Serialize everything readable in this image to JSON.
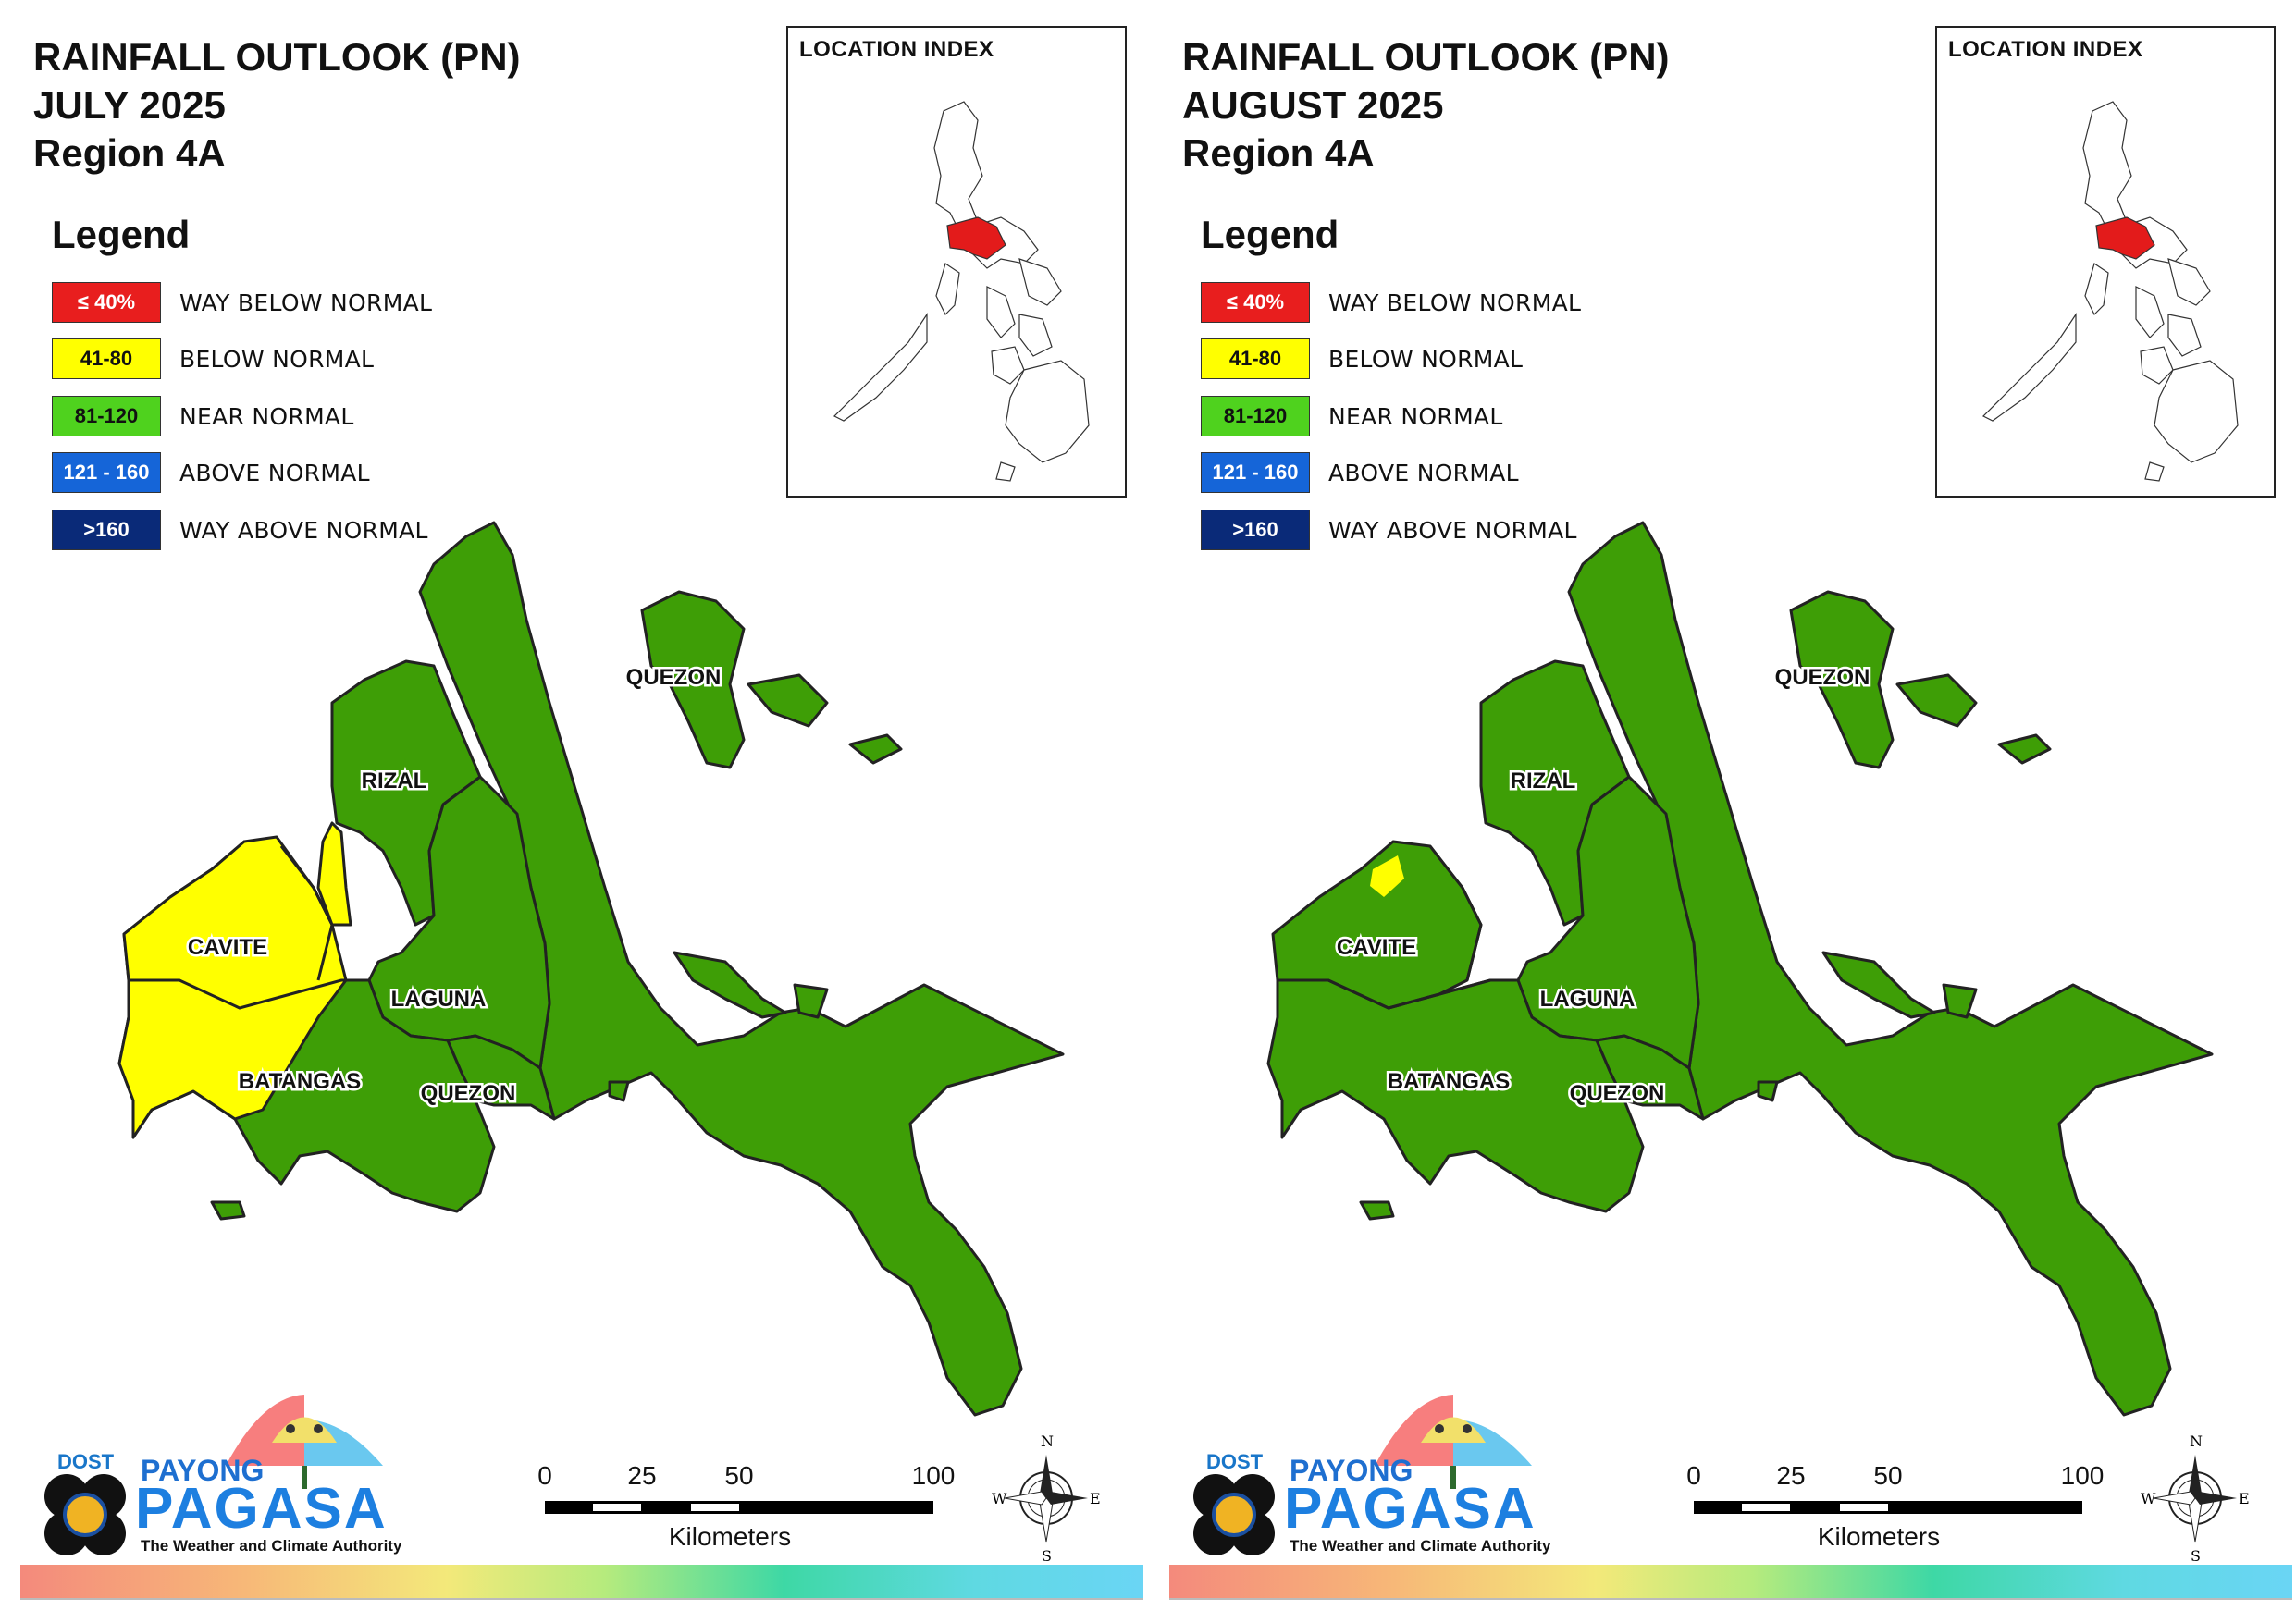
{
  "colors": {
    "way_below": "#e81e1e",
    "below": "#ffff00",
    "near": "#3fa808",
    "above": "#1565d8",
    "way_above": "#0a2a78"
  },
  "legend": {
    "heading": "Legend",
    "items": [
      {
        "range": "≤ 40%",
        "label": "WAY BELOW NORMAL",
        "color": "#e81e1e",
        "text_color": "#ffffff"
      },
      {
        "range": "41-80",
        "label": "BELOW NORMAL",
        "color": "#ffff00",
        "text_color": "#111111"
      },
      {
        "range": "81-120",
        "label": "NEAR NORMAL",
        "color": "#4fd21e",
        "text_color": "#111111"
      },
      {
        "range": "121 - 160",
        "label": "ABOVE NORMAL",
        "color": "#1565d8",
        "text_color": "#ffffff"
      },
      {
        "range": ">160",
        "label": "WAY ABOVE NORMAL",
        "color": "#0a2a78",
        "text_color": "#ffffff"
      }
    ]
  },
  "location_index": {
    "title": "LOCATION INDEX"
  },
  "map_labels": {
    "quezon": "QUEZON",
    "rizal": "RIZAL",
    "cavite": "CAVITE",
    "laguna": "LAGUNA",
    "batangas": "BATANGAS"
  },
  "scale": {
    "ticks": [
      "0",
      "25",
      "50",
      "100"
    ],
    "units": "Kilometers"
  },
  "compass": {
    "n": "N",
    "s": "S",
    "e": "E",
    "w": "W"
  },
  "logo": {
    "dost": "DOST",
    "payong": "PAYONG",
    "pagasa": "PAGASA",
    "tagline": "The Weather and Climate Authority"
  },
  "panels": [
    {
      "title_line1": "RAINFALL OUTLOOK (PN)",
      "title_line2": "JULY 2025",
      "title_line3": "Region 4A",
      "below_normal_zone": "cavite-batangas-west"
    },
    {
      "title_line1": "RAINFALL OUTLOOK (PN)",
      "title_line2": "AUGUST 2025",
      "title_line3": "Region 4A",
      "below_normal_zone": "cavite-north-tip"
    }
  ]
}
